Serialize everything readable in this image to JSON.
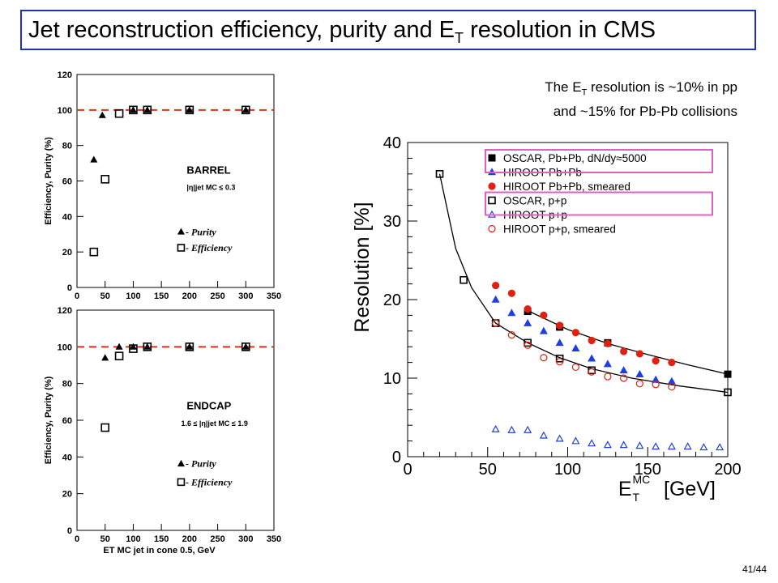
{
  "slide": {
    "title_main": "Jet reconstruction efficiency, purity and E",
    "title_sub": "T",
    "title_tail": " resolution in CMS",
    "note_line1_pre": "The E",
    "note_line1_sub": "T",
    "note_line1_post": " resolution is ~10% in pp",
    "note_line2": "and ~15% for Pb-Pb collisions",
    "page_number": "41/44"
  },
  "colors": {
    "title_border": "#1f2fbf",
    "reference_line": "#e03010",
    "highlight_box": "#e060c0",
    "blue": "#1f3fdd",
    "red": "#e02010"
  },
  "chart_data": [
    {
      "type": "scatter",
      "panel": "barrel",
      "label_region": "BARREL",
      "label_cut": "|η|jet MC ≤ 0.3",
      "ylabel": "Efficiency, Purity (%)",
      "xlabel": "",
      "xlim": [
        0,
        350
      ],
      "ylim": [
        0,
        120
      ],
      "xticks": [
        0,
        50,
        100,
        150,
        200,
        250,
        300,
        350
      ],
      "yticks": [
        0,
        20,
        40,
        60,
        80,
        100,
        120
      ],
      "reference_line": 100,
      "series": [
        {
          "name": "- Purity",
          "marker": "filled-triangle",
          "x": [
            30,
            45,
            100,
            125,
            200,
            300
          ],
          "y": [
            72,
            97,
            100,
            100,
            100,
            100
          ]
        },
        {
          "name": "- Efficiency",
          "marker": "open-square",
          "x": [
            30,
            50,
            75,
            100,
            125,
            200,
            300
          ],
          "y": [
            20,
            61,
            98,
            100,
            100,
            100,
            100
          ]
        }
      ]
    },
    {
      "type": "scatter",
      "panel": "endcap",
      "label_region": "ENDCAP",
      "label_cut": "1.6 ≤ |η|jet MC ≤ 1.9",
      "ylabel": "Efficiency, Purity (%)",
      "xlabel": "ET MC jet in cone 0.5, GeV",
      "xlim": [
        0,
        350
      ],
      "ylim": [
        0,
        120
      ],
      "xticks": [
        0,
        50,
        100,
        150,
        200,
        250,
        300,
        350
      ],
      "yticks": [
        0,
        20,
        40,
        60,
        80,
        100,
        120
      ],
      "reference_line": 100,
      "series": [
        {
          "name": "- Purity",
          "marker": "filled-triangle",
          "x": [
            50,
            75,
            100,
            125,
            200,
            300
          ],
          "y": [
            94,
            100,
            100,
            100,
            100,
            100
          ]
        },
        {
          "name": "- Efficiency",
          "marker": "open-square",
          "x": [
            50,
            75,
            100,
            125,
            200,
            300
          ],
          "y": [
            56,
            95,
            99,
            100,
            100,
            100
          ]
        }
      ]
    },
    {
      "type": "scatter",
      "panel": "resolution",
      "ylabel": "Resolution [%]",
      "xlabel": "E T MC [GeV]",
      "xlim": [
        0,
        200
      ],
      "ylim": [
        0,
        40
      ],
      "xticks": [
        0,
        50,
        100,
        150,
        200
      ],
      "yticks": [
        0,
        10,
        20,
        30,
        40
      ],
      "series": [
        {
          "name": "OSCAR, Pb+Pb, dN/dy≈5000",
          "marker": "filled-square",
          "color": "#000000",
          "x": [
            75,
            95,
            125,
            200
          ],
          "y": [
            18.5,
            16.5,
            14.5,
            10.5
          ]
        },
        {
          "name": "HIROOT Pb+Pb",
          "marker": "filled-triangle",
          "color": "#1f3fdd",
          "x": [
            55,
            65,
            75,
            85,
            95,
            105,
            115,
            125,
            135,
            145,
            155,
            165
          ],
          "y": [
            20,
            18.3,
            17,
            16,
            14.5,
            13.8,
            12.5,
            11.8,
            11,
            10.5,
            9.8,
            9.6
          ]
        },
        {
          "name": "HIROOT Pb+Pb, smeared",
          "marker": "filled-circle",
          "color": "#e02010",
          "x": [
            55,
            65,
            75,
            85,
            95,
            105,
            115,
            125,
            135,
            145,
            155,
            165
          ],
          "y": [
            21.8,
            20.8,
            18.8,
            18,
            16.7,
            15.8,
            14.8,
            14.4,
            13.4,
            13.1,
            12.2,
            12
          ]
        },
        {
          "name": "OSCAR, p+p",
          "marker": "open-square",
          "color": "#000000",
          "x": [
            20,
            35,
            55,
            75,
            95,
            115,
            200
          ],
          "y": [
            36,
            22.5,
            17,
            14.5,
            12.5,
            11,
            8.2
          ]
        },
        {
          "name": "HIROOT p+p",
          "marker": "open-triangle",
          "color": "#1f3fdd",
          "x": [
            55,
            65,
            75,
            85,
            95,
            105,
            115,
            125,
            135,
            145,
            155,
            165,
            175,
            185,
            195
          ],
          "y": [
            3.5,
            3.4,
            3.4,
            2.7,
            2.3,
            2,
            1.7,
            1.5,
            1.5,
            1.4,
            1.3,
            1.3,
            1.3,
            1.2,
            1.2
          ]
        },
        {
          "name": "HIROOT p+p, smeared",
          "marker": "open-circle",
          "color": "#e02010",
          "x": [
            55,
            65,
            75,
            85,
            95,
            105,
            115,
            125,
            135,
            145,
            155,
            165
          ],
          "y": [
            17,
            15.5,
            14.2,
            12.6,
            12.1,
            11.4,
            10.8,
            10.2,
            10,
            9.3,
            9.2,
            8.9
          ]
        }
      ],
      "fit_curves": [
        {
          "for": "OSCAR, Pb+Pb, dN/dy≈5000",
          "x": [
            75,
            100,
            125,
            150,
            175,
            200
          ],
          "y": [
            18.6,
            16.2,
            14.4,
            13,
            11.7,
            10.5
          ]
        },
        {
          "for": "OSCAR, p+p",
          "x": [
            20,
            30,
            40,
            55,
            75,
            95,
            115,
            140,
            170,
            200
          ],
          "y": [
            36,
            26.5,
            21.5,
            17,
            14.5,
            12.6,
            11.2,
            10,
            9,
            8.2
          ]
        }
      ],
      "highlighted_entries": [
        "OSCAR, Pb+Pb, dN/dy≈5000",
        "OSCAR, p+p"
      ]
    }
  ]
}
